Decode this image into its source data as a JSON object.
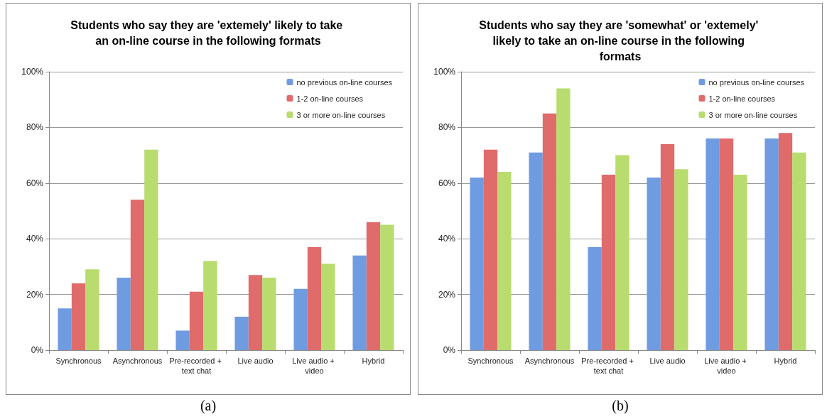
{
  "chart_data": [
    {
      "type": "bar",
      "title": "Students who say they are 'extemely' likely to take an on-line course in the following formats",
      "categories": [
        "Synchronous",
        "Asynchronous",
        "Pre-recorded + text chat",
        "Live audio",
        "Live audio + video",
        "Hybrid"
      ],
      "series": [
        {
          "name": "no previous on-line courses",
          "color": "#6f9be0",
          "values": [
            15,
            26,
            7,
            12,
            22,
            34
          ]
        },
        {
          "name": "1-2 on-line courses",
          "color": "#e06b6b",
          "values": [
            24,
            54,
            21,
            27,
            37,
            46
          ]
        },
        {
          "name": "3 or more on-line courses",
          "color": "#b8dc6e",
          "values": [
            29,
            72,
            32,
            26,
            31,
            45
          ]
        }
      ],
      "ylim": [
        0,
        100
      ],
      "yticks": [
        {
          "value": 0,
          "label": "0%"
        },
        {
          "value": 20,
          "label": "20%"
        },
        {
          "value": 40,
          "label": "40%"
        },
        {
          "value": 60,
          "label": "60%"
        },
        {
          "value": 80,
          "label": "80%"
        },
        {
          "value": 100,
          "label": "100%"
        }
      ],
      "grid": "y",
      "legend": "top right",
      "annotations": [
        "(a)"
      ]
    },
    {
      "type": "bar",
      "title": "Students who say they are 'somewhat' or 'extemely' likely to take an on-line course in the following formats",
      "categories": [
        "Synchronous",
        "Asynchronous",
        "Pre-recorded + text chat",
        "Live audio",
        "Live audio + video",
        "Hybrid"
      ],
      "series": [
        {
          "name": "no previous on-line courses",
          "color": "#6f9be0",
          "values": [
            62,
            71,
            37,
            62,
            76,
            76
          ]
        },
        {
          "name": "1-2 on-line courses",
          "color": "#e06b6b",
          "values": [
            72,
            85,
            63,
            74,
            76,
            78
          ]
        },
        {
          "name": "3 or more on-line courses",
          "color": "#b8dc6e",
          "values": [
            64,
            94,
            70,
            65,
            63,
            71
          ]
        }
      ],
      "ylim": [
        0,
        100
      ],
      "yticks": [
        {
          "value": 0,
          "label": "0%"
        },
        {
          "value": 20,
          "label": "20%"
        },
        {
          "value": 40,
          "label": "40%"
        },
        {
          "value": 60,
          "label": "60%"
        },
        {
          "value": 80,
          "label": "80%"
        },
        {
          "value": 100,
          "label": "100%"
        }
      ],
      "grid": "y",
      "legend": "top right",
      "annotations": [
        "(b)"
      ]
    }
  ]
}
